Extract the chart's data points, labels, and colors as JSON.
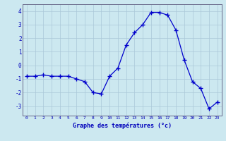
{
  "hours": [
    0,
    1,
    2,
    3,
    4,
    5,
    6,
    7,
    8,
    9,
    10,
    11,
    12,
    13,
    14,
    15,
    16,
    17,
    18,
    19,
    20,
    21,
    22,
    23
  ],
  "temps": [
    -0.8,
    -0.8,
    -0.7,
    -0.8,
    -0.8,
    -0.8,
    -1.0,
    -1.2,
    -2.0,
    -2.1,
    -0.8,
    -0.2,
    1.5,
    2.4,
    3.0,
    3.9,
    3.9,
    3.7,
    2.6,
    0.4,
    -1.2,
    -1.7,
    -3.2,
    -2.7
  ],
  "ylabel_ticks": [
    -3,
    -2,
    -1,
    0,
    1,
    2,
    3,
    4
  ],
  "xlabel": "Graphe des températures (°c)",
  "line_color": "#0000cc",
  "marker": "+",
  "bg_color": "#cce8f0",
  "grid_color": "#aac8d8",
  "axis_color": "#0000bb",
  "spine_color": "#666688",
  "ylim": [
    -3.7,
    4.5
  ],
  "xlim": [
    -0.5,
    23.5
  ]
}
